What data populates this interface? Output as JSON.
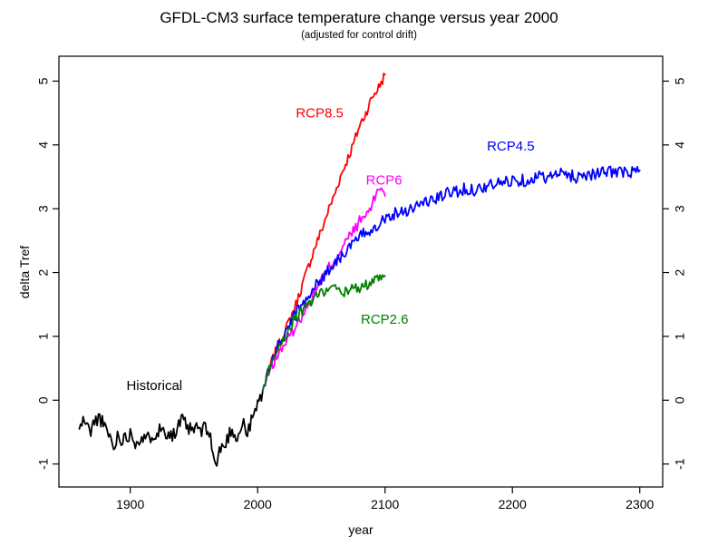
{
  "title": "GFDL-CM3 surface temperature change versus year 2000",
  "subtitle": "(adjusted for control drift)",
  "chart_data": {
    "type": "line",
    "title": "GFDL-CM3 surface temperature change versus year 2000",
    "subtitle": "(adjusted for control drift)",
    "xlabel": "year",
    "ylabel": "delta Tref",
    "xlim": [
      1844,
      2318
    ],
    "ylim": [
      -1.36,
      5.39
    ],
    "x_ticks": [
      1900,
      2000,
      2100,
      2200,
      2300
    ],
    "y_ticks": [
      -1,
      0,
      1,
      2,
      3,
      4,
      5
    ],
    "grid": false,
    "legend_position": "inline-annotations",
    "background": "#ffffff",
    "axis_color": "#000000",
    "series": [
      {
        "name": "Historical",
        "color": "#000000",
        "noise": 0.12,
        "seed": 11,
        "points": [
          [
            1860,
            -0.45
          ],
          [
            1864,
            -0.3
          ],
          [
            1868,
            -0.5
          ],
          [
            1872,
            -0.35
          ],
          [
            1876,
            -0.25
          ],
          [
            1880,
            -0.45
          ],
          [
            1884,
            -0.55
          ],
          [
            1887,
            -0.78
          ],
          [
            1890,
            -0.55
          ],
          [
            1895,
            -0.62
          ],
          [
            1900,
            -0.5
          ],
          [
            1904,
            -0.65
          ],
          [
            1908,
            -0.58
          ],
          [
            1912,
            -0.65
          ],
          [
            1916,
            -0.55
          ],
          [
            1920,
            -0.5
          ],
          [
            1925,
            -0.45
          ],
          [
            1930,
            -0.5
          ],
          [
            1935,
            -0.55
          ],
          [
            1940,
            -0.32
          ],
          [
            1944,
            -0.4
          ],
          [
            1948,
            -0.5
          ],
          [
            1952,
            -0.42
          ],
          [
            1956,
            -0.5
          ],
          [
            1960,
            -0.42
          ],
          [
            1963,
            -0.6
          ],
          [
            1966,
            -0.95
          ],
          [
            1968,
            -1.02
          ],
          [
            1971,
            -0.72
          ],
          [
            1974,
            -0.75
          ],
          [
            1977,
            -0.55
          ],
          [
            1980,
            -0.45
          ],
          [
            1983,
            -0.58
          ],
          [
            1986,
            -0.5
          ],
          [
            1989,
            -0.33
          ],
          [
            1992,
            -0.55
          ],
          [
            1995,
            -0.33
          ],
          [
            1998,
            -0.18
          ],
          [
            2001,
            -0.02
          ],
          [
            2004,
            0.15
          ]
        ]
      },
      {
        "name": "RCP8.5",
        "color": "#FF0000",
        "noise": 0.08,
        "seed": 7,
        "points": [
          [
            2004,
            0.15
          ],
          [
            2010,
            0.55
          ],
          [
            2015,
            0.8
          ],
          [
            2020,
            1.0
          ],
          [
            2025,
            1.25
          ],
          [
            2030,
            1.5
          ],
          [
            2035,
            1.8
          ],
          [
            2040,
            2.1
          ],
          [
            2045,
            2.4
          ],
          [
            2050,
            2.65
          ],
          [
            2055,
            2.95
          ],
          [
            2060,
            3.2
          ],
          [
            2065,
            3.5
          ],
          [
            2070,
            3.75
          ],
          [
            2075,
            4.0
          ],
          [
            2080,
            4.3
          ],
          [
            2085,
            4.5
          ],
          [
            2090,
            4.75
          ],
          [
            2095,
            4.9
          ],
          [
            2100,
            5.1
          ]
        ]
      },
      {
        "name": "RCP6",
        "color": "#FF00FF",
        "noise": 0.09,
        "seed": 13,
        "points": [
          [
            2004,
            0.15
          ],
          [
            2010,
            0.5
          ],
          [
            2015,
            0.68
          ],
          [
            2020,
            0.85
          ],
          [
            2025,
            1.0
          ],
          [
            2030,
            1.15
          ],
          [
            2035,
            1.35
          ],
          [
            2040,
            1.5
          ],
          [
            2045,
            1.7
          ],
          [
            2050,
            1.9
          ],
          [
            2055,
            2.05
          ],
          [
            2060,
            2.2
          ],
          [
            2065,
            2.35
          ],
          [
            2070,
            2.5
          ],
          [
            2075,
            2.65
          ],
          [
            2080,
            2.8
          ],
          [
            2085,
            2.9
          ],
          [
            2090,
            3.05
          ],
          [
            2094,
            3.3
          ],
          [
            2097,
            3.35
          ],
          [
            2100,
            3.2
          ]
        ]
      },
      {
        "name": "RCP4.5",
        "color": "#0000FF",
        "noise": 0.1,
        "seed": 3,
        "points": [
          [
            2004,
            0.15
          ],
          [
            2010,
            0.55
          ],
          [
            2015,
            0.8
          ],
          [
            2020,
            1.0
          ],
          [
            2030,
            1.35
          ],
          [
            2040,
            1.65
          ],
          [
            2050,
            1.9
          ],
          [
            2060,
            2.15
          ],
          [
            2070,
            2.35
          ],
          [
            2080,
            2.55
          ],
          [
            2090,
            2.7
          ],
          [
            2100,
            2.85
          ],
          [
            2110,
            2.95
          ],
          [
            2120,
            3.0
          ],
          [
            2130,
            3.1
          ],
          [
            2140,
            3.15
          ],
          [
            2150,
            3.25
          ],
          [
            2160,
            3.3
          ],
          [
            2170,
            3.3
          ],
          [
            2180,
            3.35
          ],
          [
            2190,
            3.4
          ],
          [
            2200,
            3.45
          ],
          [
            2210,
            3.45
          ],
          [
            2220,
            3.5
          ],
          [
            2230,
            3.5
          ],
          [
            2240,
            3.55
          ],
          [
            2250,
            3.5
          ],
          [
            2260,
            3.55
          ],
          [
            2270,
            3.55
          ],
          [
            2280,
            3.6
          ],
          [
            2290,
            3.55
          ],
          [
            2300,
            3.6
          ]
        ]
      },
      {
        "name": "RCP2.6",
        "color": "#007F00",
        "noise": 0.09,
        "seed": 5,
        "points": [
          [
            2004,
            0.15
          ],
          [
            2010,
            0.55
          ],
          [
            2015,
            0.8
          ],
          [
            2020,
            0.95
          ],
          [
            2025,
            1.15
          ],
          [
            2030,
            1.3
          ],
          [
            2035,
            1.4
          ],
          [
            2040,
            1.5
          ],
          [
            2045,
            1.6
          ],
          [
            2050,
            1.7
          ],
          [
            2055,
            1.75
          ],
          [
            2060,
            1.75
          ],
          [
            2065,
            1.7
          ],
          [
            2070,
            1.7
          ],
          [
            2075,
            1.75
          ],
          [
            2080,
            1.75
          ],
          [
            2085,
            1.8
          ],
          [
            2090,
            1.85
          ],
          [
            2095,
            1.9
          ],
          [
            2100,
            1.95
          ]
        ]
      }
    ],
    "annotations": [
      {
        "text": "Historical",
        "color": "#000000",
        "x": 1897,
        "y": 0.23
      },
      {
        "text": "RCP8.5",
        "color": "#FF0000",
        "x": 2030,
        "y": 4.5
      },
      {
        "text": "RCP6",
        "color": "#FF00FF",
        "x": 2085,
        "y": 3.45
      },
      {
        "text": "RCP4.5",
        "color": "#0000FF",
        "x": 2180,
        "y": 3.98
      },
      {
        "text": "RCP2.6",
        "color": "#007F00",
        "x": 2081,
        "y": 1.27
      }
    ]
  }
}
